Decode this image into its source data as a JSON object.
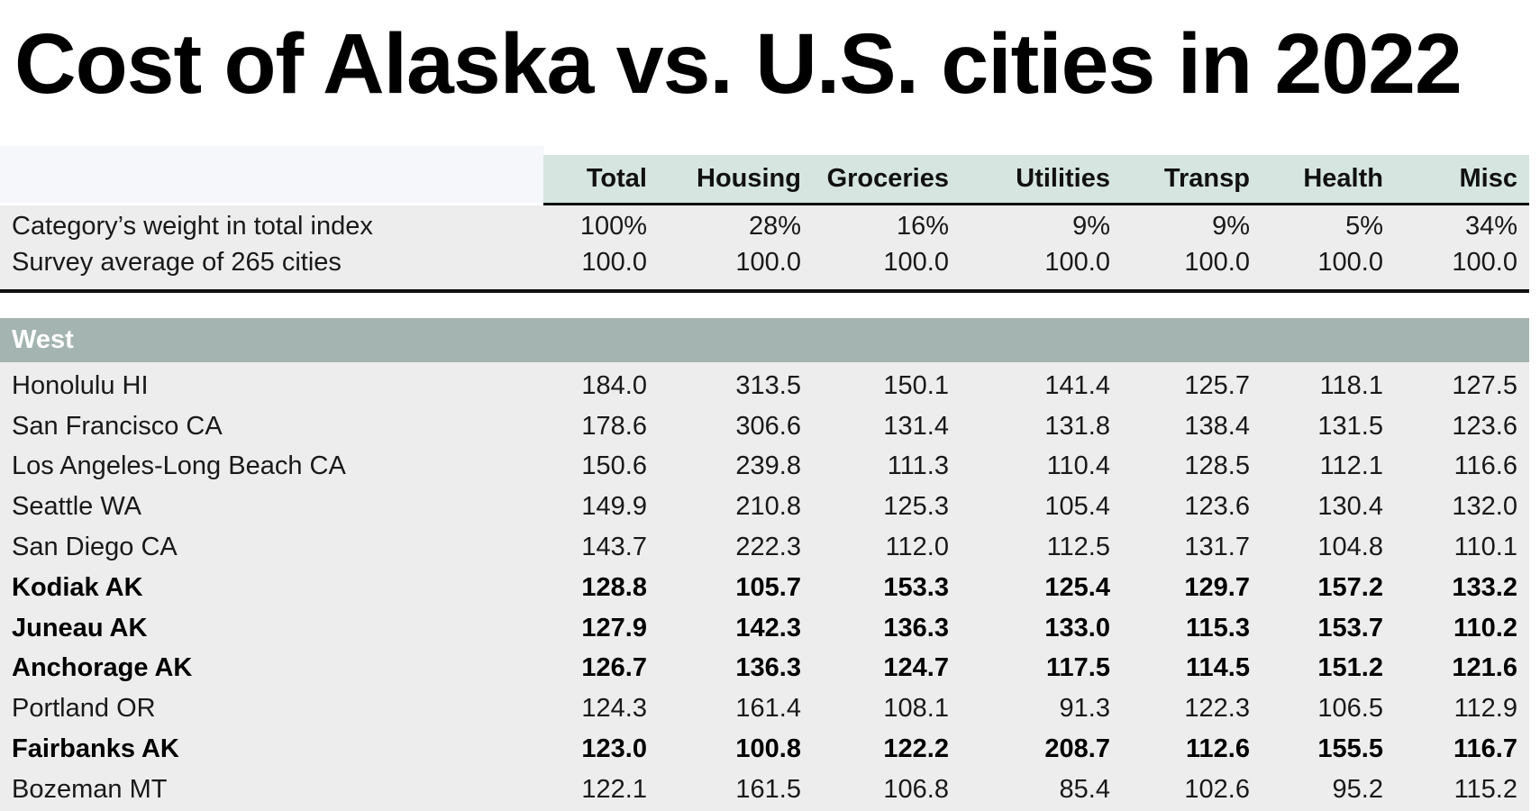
{
  "title": "Cost of Alaska vs. U.S. cities in 2022",
  "colors": {
    "header_green": "#d6e5df",
    "header_label_bg": "#f5f7fa",
    "row_bg": "#ededee",
    "section_bg": "#a4b4b0",
    "line_color": "#101010",
    "section_text": "#ffffff",
    "body_text": "#191919"
  },
  "chart_data": {
    "type": "table",
    "title": "Cost of Alaska vs. U.S. cities in 2022",
    "columns": [
      "Total",
      "Housing",
      "Groceries",
      "Utilities",
      "Transp",
      "Health",
      "Misc"
    ],
    "meta_rows": [
      {
        "label": "Category’s weight in total index",
        "bold": false,
        "values": [
          "100%",
          "28%",
          "16%",
          "9%",
          "9%",
          "5%",
          "34%"
        ]
      },
      {
        "label": "Survey average of 265 cities",
        "bold": false,
        "values": [
          "100.0",
          "100.0",
          "100.0",
          "100.0",
          "100.0",
          "100.0",
          "100.0"
        ]
      }
    ],
    "section": "West",
    "rows": [
      {
        "label": "Honolulu HI",
        "bold": false,
        "values": [
          "184.0",
          "313.5",
          "150.1",
          "141.4",
          "125.7",
          "118.1",
          "127.5"
        ]
      },
      {
        "label": "San Francisco CA",
        "bold": false,
        "values": [
          "178.6",
          "306.6",
          "131.4",
          "131.8",
          "138.4",
          "131.5",
          "123.6"
        ]
      },
      {
        "label": "Los Angeles-Long Beach CA",
        "bold": false,
        "values": [
          "150.6",
          "239.8",
          "111.3",
          "110.4",
          "128.5",
          "112.1",
          "116.6"
        ]
      },
      {
        "label": "Seattle WA",
        "bold": false,
        "values": [
          "149.9",
          "210.8",
          "125.3",
          "105.4",
          "123.6",
          "130.4",
          "132.0"
        ]
      },
      {
        "label": "San Diego CA",
        "bold": false,
        "values": [
          "143.7",
          "222.3",
          "112.0",
          "112.5",
          "131.7",
          "104.8",
          "110.1"
        ]
      },
      {
        "label": "Kodiak AK",
        "bold": true,
        "values": [
          "128.8",
          "105.7",
          "153.3",
          "125.4",
          "129.7",
          "157.2",
          "133.2"
        ]
      },
      {
        "label": "Juneau AK",
        "bold": true,
        "values": [
          "127.9",
          "142.3",
          "136.3",
          "133.0",
          "115.3",
          "153.7",
          "110.2"
        ]
      },
      {
        "label": "Anchorage AK",
        "bold": true,
        "values": [
          "126.7",
          "136.3",
          "124.7",
          "117.5",
          "114.5",
          "151.2",
          "121.6"
        ]
      },
      {
        "label": "Portland OR",
        "bold": false,
        "values": [
          "124.3",
          "161.4",
          "108.1",
          "91.3",
          "122.3",
          "106.5",
          "112.9"
        ]
      },
      {
        "label": "Fairbanks AK",
        "bold": true,
        "values": [
          "123.0",
          "100.8",
          "122.2",
          "208.7",
          "112.6",
          "155.5",
          "116.7"
        ]
      },
      {
        "label": "Bozeman MT",
        "bold": false,
        "values": [
          "122.1",
          "161.5",
          "106.8",
          "85.4",
          "102.6",
          "95.2",
          "115.2"
        ]
      }
    ],
    "layout_hints": {
      "bold_rows_meaning": "Alaska cities highlighted in bold",
      "value_alignment": "right",
      "section_header_position": "full-width band above city rows"
    }
  }
}
